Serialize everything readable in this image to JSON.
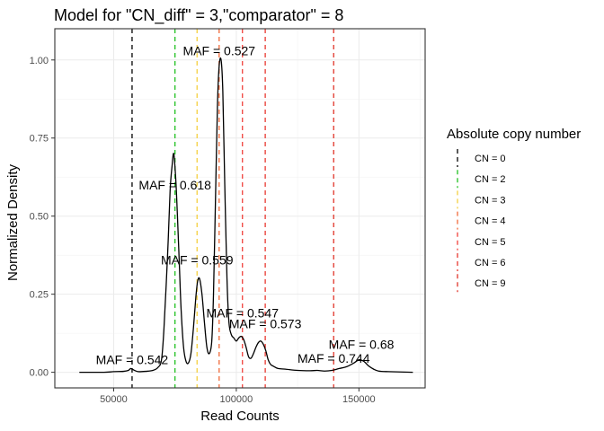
{
  "chart_data": {
    "type": "line",
    "title": "Model for \"CN_diff\" = 3,\"comparator\" = 8",
    "xlabel": "Read Counts",
    "ylabel": "Normalized Density",
    "xlim": [
      26000,
      177000
    ],
    "ylim": [
      -0.05,
      1.1
    ],
    "x_ticks": [
      50000,
      100000,
      150000
    ],
    "x_tick_labels": [
      "50000",
      "100000",
      "150000"
    ],
    "y_ticks": [
      0,
      0.25,
      0.5,
      0.75,
      1
    ],
    "y_tick_labels": [
      "0.00",
      "0.25",
      "0.50",
      "0.75",
      "1.00"
    ],
    "grid": true,
    "density_curve": {
      "x": [
        36000,
        46000,
        50000,
        54000,
        56000,
        57000,
        58500,
        60000,
        63000,
        66000,
        68000,
        69500,
        70500,
        72000,
        73000,
        73800,
        74500,
        75300,
        76000,
        76800,
        77500,
        78500,
        79500,
        80500,
        81500,
        82500,
        83500,
        84200,
        85000,
        86000,
        87000,
        88000,
        89000,
        90000,
        90700,
        91500,
        92300,
        93000,
        93800,
        94500,
        95300,
        96200,
        97000,
        98000,
        99000,
        100000,
        101000,
        102000,
        103000,
        104000,
        105000,
        106000,
        107000,
        108000,
        109000,
        110000,
        111000,
        112000,
        113000,
        114000,
        115000,
        117000,
        120000,
        125000,
        130000,
        133000,
        136000,
        139000,
        142000,
        145000,
        148000,
        150000,
        152000,
        154000,
        156000,
        158000,
        162000,
        172000
      ],
      "y": [
        0,
        0,
        0.002,
        0.003,
        0.006,
        0.012,
        0.006,
        0.002,
        0.003,
        0.006,
        0.015,
        0.04,
        0.14,
        0.38,
        0.58,
        0.66,
        0.7,
        0.62,
        0.5,
        0.34,
        0.2,
        0.08,
        0.035,
        0.03,
        0.06,
        0.14,
        0.24,
        0.29,
        0.3,
        0.25,
        0.16,
        0.08,
        0.06,
        0.1,
        0.25,
        0.55,
        0.85,
        0.98,
        1.0,
        0.9,
        0.6,
        0.3,
        0.16,
        0.12,
        0.11,
        0.1,
        0.11,
        0.115,
        0.105,
        0.08,
        0.05,
        0.045,
        0.06,
        0.08,
        0.095,
        0.1,
        0.09,
        0.07,
        0.04,
        0.025,
        0.02,
        0.012,
        0.01,
        0.006,
        0.005,
        0.006,
        0.004,
        0.006,
        0.012,
        0.018,
        0.03,
        0.04,
        0.035,
        0.02,
        0.01,
        0.004,
        0.002,
        0
      ]
    },
    "reference_lines": [
      {
        "x": 57500,
        "color": "#000000",
        "label": "CN = 0"
      },
      {
        "x": 75000,
        "color": "#1fbf1f",
        "label": "CN = 2"
      },
      {
        "x": 84000,
        "color": "#f5d040",
        "label": "CN = 3"
      },
      {
        "x": 93000,
        "color": "#f06a3a",
        "label": "CN = 4"
      },
      {
        "x": 102500,
        "color": "#f0403a",
        "label": "CN = 5"
      },
      {
        "x": 111800,
        "color": "#e8362e",
        "label": "CN = 6"
      },
      {
        "x": 139700,
        "color": "#e03428",
        "label": "CN = 9"
      }
    ],
    "annotations": [
      {
        "text": "MAF = 0.527",
        "x": 93000,
        "y": 1.03
      },
      {
        "text": "MAF = 0.618",
        "x": 75000,
        "y": 0.6
      },
      {
        "text": "MAF = 0.559",
        "x": 84000,
        "y": 0.36
      },
      {
        "text": "MAF = 0.547",
        "x": 102500,
        "y": 0.19
      },
      {
        "text": "MAF = 0.573",
        "x": 111800,
        "y": 0.155
      },
      {
        "text": "MAF = 0.542",
        "x": 57500,
        "y": 0.04
      },
      {
        "text": "MAF = 0.68",
        "x": 151000,
        "y": 0.09
      },
      {
        "text": "MAF = 0.744",
        "x": 139700,
        "y": 0.045
      }
    ],
    "legend": {
      "title": "Absolute copy number",
      "position": "right"
    }
  }
}
